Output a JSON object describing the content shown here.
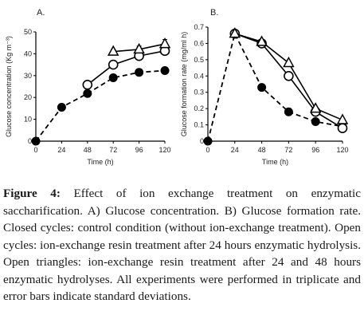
{
  "chart_data": [
    {
      "type": "line",
      "panel_label": "A.",
      "xlabel": "Time (h)",
      "ylabel": "Glucose concentration (Kg m⁻³)",
      "x": [
        0,
        24,
        48,
        72,
        96,
        120
      ],
      "xlim": [
        0,
        120
      ],
      "ylim": [
        0,
        50
      ],
      "yticks": [
        0,
        10,
        20,
        30,
        40,
        50
      ],
      "grid": false,
      "series": [
        {
          "marker": "filled-circle",
          "line": "dashed",
          "values": [
            0,
            15.5,
            21.8,
            29.0,
            31.5,
            32.3
          ],
          "errors": [
            0,
            1.0,
            0.8,
            0.8,
            0.6,
            0.6
          ]
        },
        {
          "marker": "open-circle",
          "line": "solid",
          "values": [
            null,
            null,
            25.8,
            35.0,
            39.0,
            41.3
          ],
          "errors": [
            null,
            null,
            1.0,
            1.2,
            1.3,
            1.5
          ]
        },
        {
          "marker": "open-triangle",
          "line": "solid",
          "values": [
            null,
            null,
            null,
            41.0,
            42.0,
            44.5
          ],
          "errors": [
            null,
            null,
            null,
            1.0,
            1.5,
            2.0
          ]
        }
      ]
    },
    {
      "type": "line",
      "panel_label": "B.",
      "xlabel": "Time (h)",
      "ylabel": "Glucose formation rate (mg/ml h)",
      "x": [
        0,
        24,
        48,
        72,
        96,
        120
      ],
      "xlim": [
        0,
        120
      ],
      "ylim": [
        0,
        0.7
      ],
      "yticks": [
        0,
        0.1,
        0.2,
        0.3,
        0.4,
        0.5,
        0.6,
        0.7
      ],
      "grid": false,
      "series": [
        {
          "marker": "filled-circle",
          "line": "dashed",
          "values": [
            0,
            0.66,
            0.33,
            0.18,
            0.12,
            0.09
          ]
        },
        {
          "marker": "open-circle",
          "line": "solid",
          "values": [
            null,
            0.66,
            0.6,
            0.4,
            0.18,
            0.08
          ]
        },
        {
          "marker": "open-triangle",
          "line": "solid",
          "values": [
            null,
            0.66,
            0.61,
            0.48,
            0.2,
            0.13
          ]
        }
      ]
    }
  ],
  "caption": {
    "label": "Figure 4:",
    "text": " Effect of ion exchange treatment on enzymatic saccharification. A) Glucose concentration. B) Glucose formation rate. Closed cycles: control condition (without ion-exchange treatment). Open cycles: ion-exchange resin treatment after 24 hours enzymatic hydrolysis. Open triangles: ion-exchange resin treatment after 24 and 48 hours enzymatic hydrolyses. All experiments were performed in triplicate and error bars indicate standard deviations."
  }
}
